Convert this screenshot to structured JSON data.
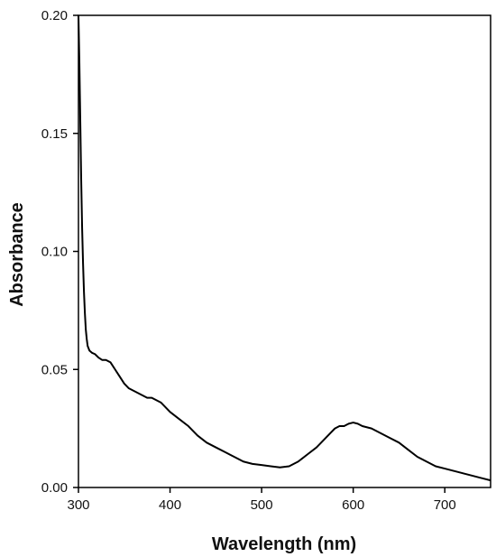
{
  "chart_data": {
    "type": "line",
    "title": "",
    "xlabel": "Wavelength (nm)",
    "ylabel": "Absorbance",
    "xlim": [
      300,
      750
    ],
    "ylim": [
      0,
      0.2
    ],
    "xticks": [
      300,
      400,
      500,
      600,
      700
    ],
    "xtick_labels": [
      "300",
      "400",
      "500",
      "600",
      "700"
    ],
    "yticks": [
      0,
      0.05,
      0.1,
      0.15,
      0.2
    ],
    "ytick_labels": [
      "0.00",
      "0.05",
      "0.10",
      "0.15",
      "0.20"
    ],
    "grid": false,
    "line_color": "#000000",
    "series": [
      {
        "x": [
          300,
          301,
          302,
          303,
          304,
          305,
          306,
          307,
          308,
          309,
          310,
          312,
          315,
          318,
          322,
          326,
          330,
          335,
          340,
          345,
          350,
          355,
          360,
          365,
          370,
          375,
          380,
          385,
          390,
          395,
          400,
          410,
          420,
          430,
          440,
          450,
          460,
          470,
          480,
          490,
          500,
          510,
          520,
          530,
          540,
          550,
          560,
          570,
          575,
          580,
          585,
          590,
          595,
          600,
          605,
          610,
          620,
          630,
          640,
          650,
          660,
          670,
          680,
          690,
          700,
          710,
          720,
          730,
          740,
          750
        ],
        "y": [
          0.2,
          0.18,
          0.155,
          0.13,
          0.11,
          0.095,
          0.083,
          0.074,
          0.067,
          0.063,
          0.06,
          0.058,
          0.057,
          0.0565,
          0.055,
          0.054,
          0.054,
          0.053,
          0.05,
          0.047,
          0.044,
          0.042,
          0.041,
          0.04,
          0.039,
          0.038,
          0.038,
          0.037,
          0.036,
          0.034,
          0.032,
          0.029,
          0.026,
          0.022,
          0.019,
          0.017,
          0.015,
          0.013,
          0.011,
          0.01,
          0.0095,
          0.009,
          0.0085,
          0.009,
          0.011,
          0.014,
          0.017,
          0.021,
          0.023,
          0.025,
          0.026,
          0.026,
          0.027,
          0.0275,
          0.027,
          0.026,
          0.025,
          0.023,
          0.021,
          0.019,
          0.016,
          0.013,
          0.011,
          0.009,
          0.008,
          0.007,
          0.006,
          0.005,
          0.004,
          0.003
        ]
      }
    ]
  }
}
